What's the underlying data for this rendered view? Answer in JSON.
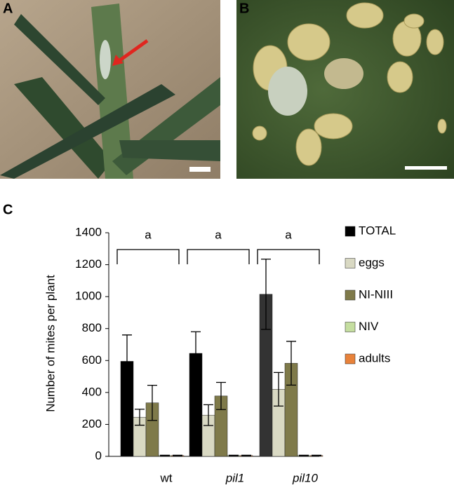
{
  "panel_labels": [
    "A",
    "B",
    "C"
  ],
  "chart_data": {
    "type": "bar",
    "y_label": "Number of mites per plant",
    "categories": [
      "wt",
      "pil1",
      "pil10"
    ],
    "series": [
      {
        "name": "TOTAL",
        "color": "#000000",
        "point_colors": [
          "#000000",
          "#000000",
          "#333333"
        ],
        "values": [
          595,
          645,
          1015
        ],
        "errors": [
          165,
          135,
          220
        ]
      },
      {
        "name": "eggs",
        "color": "#d9d9c3",
        "values": [
          245,
          258,
          420
        ],
        "errors": [
          50,
          65,
          105
        ]
      },
      {
        "name": "NI-NIII",
        "color": "#7f7a4a",
        "values": [
          335,
          378,
          583
        ],
        "errors": [
          110,
          85,
          137
        ]
      },
      {
        "name": "NIV",
        "color": "#c5dea0",
        "values": [
          5,
          5,
          5
        ],
        "errors": [
          2,
          2,
          2
        ]
      },
      {
        "name": "adults",
        "color": "#e8823a",
        "values": [
          5,
          5,
          5
        ],
        "errors": [
          2,
          2,
          2
        ]
      }
    ],
    "annotations": [
      "a",
      "a",
      "a"
    ],
    "ylim": [
      0,
      1400
    ],
    "yticks": [
      0,
      200,
      400,
      600,
      800,
      1000,
      1200,
      1400
    ],
    "grid": false,
    "legend": "right"
  }
}
